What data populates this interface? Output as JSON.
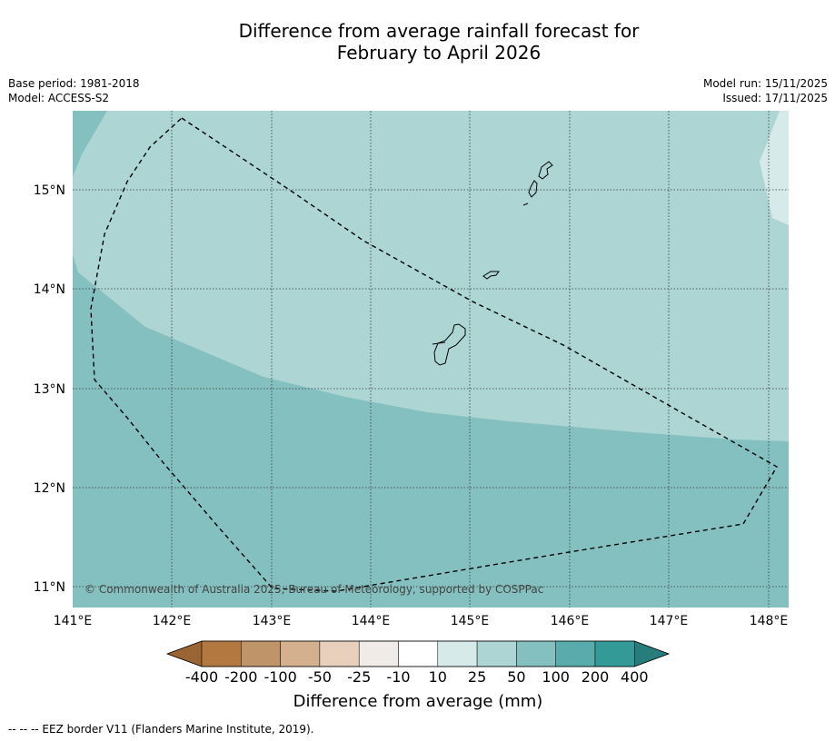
{
  "title": {
    "line1": "Difference from average rainfall forecast for",
    "line2": "February to April 2026"
  },
  "meta": {
    "base_period": "Base period: 1981-2018",
    "model": "Model: ACCESS-S2",
    "model_run": "Model run: 15/11/2025",
    "issued": "Issued: 17/11/2025"
  },
  "map": {
    "lon_ticks": [
      "141°E",
      "142°E",
      "143°E",
      "144°E",
      "145°E",
      "146°E",
      "147°E",
      "148°E"
    ],
    "lat_ticks": [
      "15°N",
      "14°N",
      "13°N",
      "12°N",
      "11°N"
    ],
    "copyright": "© Commonwealth of Australia 2025, Bureau of Meteorology, supported by COSPPac",
    "colors": {
      "band_10_25": "#d5eae9",
      "band_25_50": "#acd5d4",
      "band_50_100": "#84c0bf"
    }
  },
  "colorbar": {
    "title": "Difference from average (mm)",
    "labels": [
      "-400",
      "-200",
      "-100",
      "-50",
      "-25",
      "-10",
      "10",
      "25",
      "50",
      "100",
      "200",
      "400"
    ],
    "colors": [
      "#9a6433",
      "#b27840",
      "#c09469",
      "#d4b08e",
      "#e8d0bc",
      "#f0ebe6",
      "#ffffff",
      "#d5eae9",
      "#acd5d4",
      "#84c0bf",
      "#59acab",
      "#339a98",
      "#277d7b"
    ]
  },
  "footnote": "--  --  -- EEZ border V11 (Flanders Marine Institute, 2019)."
}
